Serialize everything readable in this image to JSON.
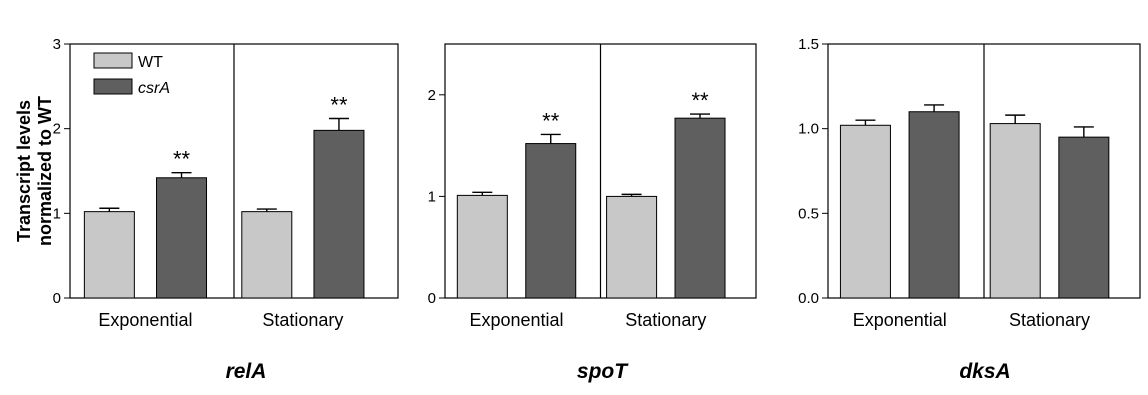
{
  "chart_data": [
    {
      "type": "bar",
      "title": "relA",
      "ylabel": "Transcript levels normalized to WT",
      "ylim": [
        0,
        3
      ],
      "yticks": [
        0,
        1,
        2,
        3
      ],
      "ytick_labels": [
        "0",
        "1",
        "2",
        "3"
      ],
      "groups": [
        "Exponential",
        "Stationary"
      ],
      "legend": {
        "position": "top-left",
        "entries": [
          {
            "label": "WT"
          },
          {
            "label": "csrA",
            "italic": true
          }
        ]
      },
      "series": [
        {
          "name": "WT",
          "color": "#c8c8c8",
          "values": [
            1.02,
            1.02
          ],
          "errors": [
            0.04,
            0.03
          ],
          "sig": [
            "",
            ""
          ]
        },
        {
          "name": "csrA",
          "color": "#5f5f5f",
          "values": [
            1.42,
            1.98
          ],
          "errors": [
            0.06,
            0.14
          ],
          "sig": [
            "**",
            "**"
          ]
        }
      ]
    },
    {
      "type": "bar",
      "title": "spoT",
      "ylim": [
        0,
        2.5
      ],
      "yticks": [
        0,
        1,
        2
      ],
      "ytick_labels": [
        "0",
        "1",
        "2"
      ],
      "groups": [
        "Exponential",
        "Stationary"
      ],
      "series": [
        {
          "name": "WT",
          "color": "#c8c8c8",
          "values": [
            1.01,
            1.0
          ],
          "errors": [
            0.03,
            0.02
          ],
          "sig": [
            "",
            ""
          ]
        },
        {
          "name": "csrA",
          "color": "#5f5f5f",
          "values": [
            1.52,
            1.77
          ],
          "errors": [
            0.09,
            0.04
          ],
          "sig": [
            "**",
            "**"
          ]
        }
      ]
    },
    {
      "type": "bar",
      "title": "dksA",
      "ylim": [
        0,
        1.5
      ],
      "yticks": [
        0,
        0.5,
        1,
        1.5
      ],
      "ytick_labels": [
        "0.0",
        "0.5",
        "1.0",
        "1.5"
      ],
      "groups": [
        "Exponential",
        "Stationary"
      ],
      "series": [
        {
          "name": "WT",
          "color": "#c8c8c8",
          "values": [
            1.02,
            1.03
          ],
          "errors": [
            0.03,
            0.05
          ],
          "sig": [
            "",
            ""
          ]
        },
        {
          "name": "csrA",
          "color": "#5f5f5f",
          "values": [
            1.1,
            0.95
          ],
          "errors": [
            0.04,
            0.06
          ],
          "sig": [
            "",
            ""
          ]
        }
      ]
    }
  ]
}
